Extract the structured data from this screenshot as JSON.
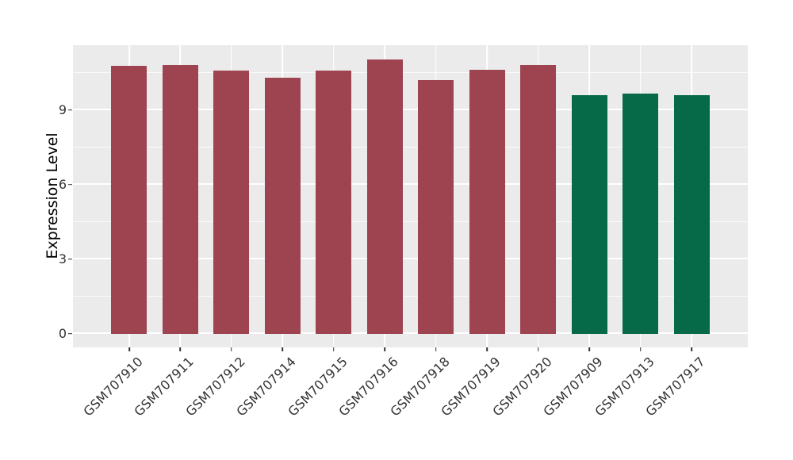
{
  "chart_data": {
    "type": "bar",
    "title": "",
    "xlabel": "",
    "ylabel": "Expression Level",
    "categories": [
      "GSM707910",
      "GSM707911",
      "GSM707912",
      "GSM707914",
      "GSM707915",
      "GSM707916",
      "GSM707918",
      "GSM707919",
      "GSM707920",
      "GSM707909",
      "GSM707913",
      "GSM707917"
    ],
    "values": [
      10.76,
      10.8,
      10.59,
      10.3,
      10.59,
      11.04,
      10.19,
      10.62,
      10.79,
      9.58,
      9.64,
      9.58
    ],
    "bar_color_keys": [
      "red",
      "red",
      "red",
      "red",
      "red",
      "red",
      "red",
      "red",
      "red",
      "green",
      "green",
      "green"
    ],
    "yticks": [
      0,
      3,
      6,
      9
    ],
    "minor_yticks": [
      1.5,
      4.5,
      7.5,
      10.5
    ],
    "ylim": [
      -0.55,
      11.6
    ],
    "grid": "on",
    "legend": "none",
    "bar_width_units": 0.7,
    "x_pad_units": 0.6
  },
  "style": {
    "palette": {
      "red": "#9E4451",
      "green": "#066A49"
    },
    "panel_bg": "#EBEBEB",
    "grid_color": "#FFFFFF",
    "tick_mark_color": "#333333",
    "tick_label_color": "#333333",
    "axis_title_color": "#000000"
  }
}
